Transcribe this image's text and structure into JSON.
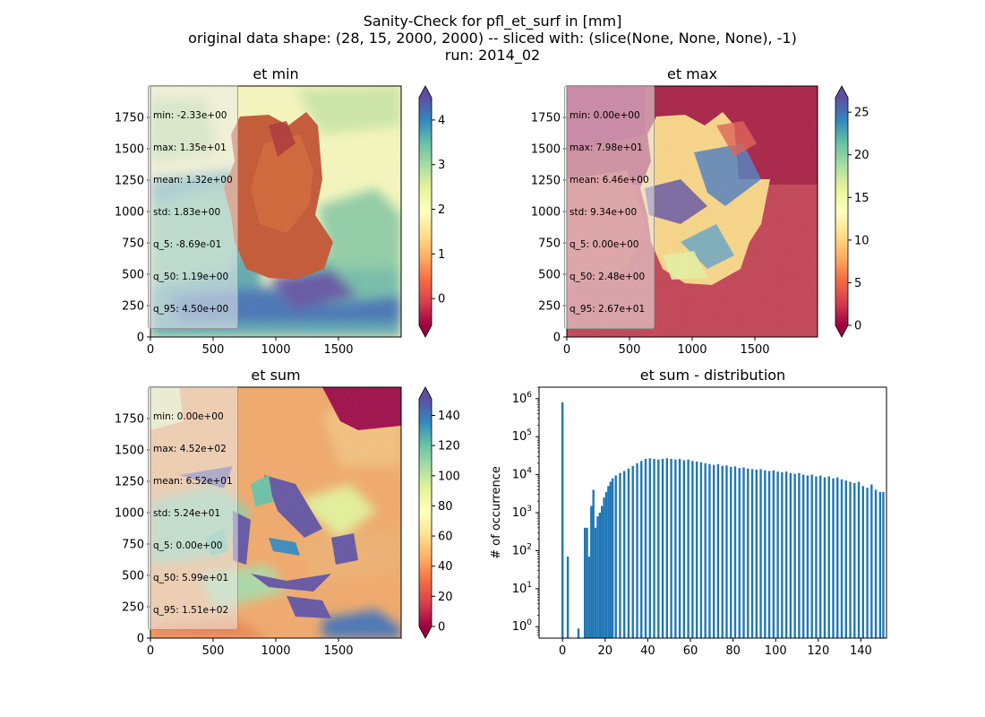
{
  "figure": {
    "title_lines": [
      "Sanity-Check for pfl_et_surf in [mm]",
      "original data shape: (28, 15, 2000, 2000) -- sliced with: (slice(None, None, None), -1)",
      "run: 2014_02"
    ]
  },
  "chart_data": [
    {
      "type": "heatmap",
      "title": "et min",
      "colormap": "Spectral",
      "colorbar": {
        "ticks": [
          0,
          1,
          2,
          3,
          4
        ],
        "range": [
          -0.6,
          4.5
        ],
        "extend": "both"
      },
      "xticks": [
        0,
        500,
        1000,
        1500
      ],
      "yticks": [
        0,
        250,
        500,
        750,
        1000,
        1250,
        1500,
        1750
      ],
      "xlim": [
        0,
        2000
      ],
      "ylim": [
        0,
        2000
      ],
      "stats": [
        "min: -2.33e+00",
        "max: 1.35e+01",
        "mean: 1.32e+00",
        "std: 1.83e+00",
        "q_5: -8.69e-01",
        "q_50: 1.19e+00",
        "q_95: 4.50e+00"
      ]
    },
    {
      "type": "heatmap",
      "title": "et max",
      "colormap": "Spectral",
      "colorbar": {
        "ticks": [
          0,
          5,
          10,
          15,
          20,
          25
        ],
        "range": [
          0,
          26.7
        ],
        "extend": "both"
      },
      "xticks": [
        0,
        500,
        1000,
        1500
      ],
      "yticks": [
        0,
        250,
        500,
        750,
        1000,
        1250,
        1500,
        1750
      ],
      "xlim": [
        0,
        2000
      ],
      "ylim": [
        0,
        2000
      ],
      "stats": [
        "min: 0.00e+00",
        "max: 7.98e+01",
        "mean: 6.46e+00",
        "std: 9.34e+00",
        "q_5: 0.00e+00",
        "q_50: 2.48e+00",
        "q_95: 2.67e+01"
      ]
    },
    {
      "type": "heatmap",
      "title": "et sum",
      "colormap": "Spectral",
      "colorbar": {
        "ticks": [
          0,
          20,
          40,
          60,
          80,
          100,
          120,
          140
        ],
        "range": [
          0,
          151
        ],
        "extend": "both"
      },
      "xticks": [
        0,
        500,
        1000,
        1500
      ],
      "yticks": [
        0,
        250,
        500,
        750,
        1000,
        1250,
        1500,
        1750
      ],
      "xlim": [
        0,
        2000
      ],
      "ylim": [
        0,
        2000
      ],
      "stats": [
        "min: 0.00e+00",
        "max: 4.52e+02",
        "mean: 6.52e+01",
        "std: 5.24e+01",
        "q_5: 0.00e+00",
        "q_50: 5.99e+01",
        "q_95: 1.51e+02"
      ]
    },
    {
      "type": "bar",
      "title": "et sum - distribution",
      "ylabel": "# of occurrence",
      "yscale": "log",
      "ylim": [
        0.5,
        2000000
      ],
      "xlim": [
        -11,
        152
      ],
      "xticks": [
        0,
        20,
        40,
        60,
        80,
        100,
        120,
        140
      ],
      "yticks": [
        1,
        10,
        100,
        1000,
        10000,
        100000,
        1000000
      ],
      "color": "#1f77b4",
      "bins": [
        [
          0,
          800000
        ],
        [
          2.5,
          70
        ],
        [
          7.5,
          0.9
        ],
        [
          10.5,
          400
        ],
        [
          11.5,
          400
        ],
        [
          12.5,
          70
        ],
        [
          13.5,
          1500
        ],
        [
          14.5,
          4000
        ],
        [
          15.5,
          400
        ],
        [
          16.5,
          800
        ],
        [
          17.5,
          1000
        ],
        [
          18.5,
          1500
        ],
        [
          19.5,
          2500
        ],
        [
          20.5,
          3500
        ],
        [
          21.5,
          5000
        ],
        [
          22.5,
          6500
        ],
        [
          23.5,
          8000
        ],
        [
          25,
          9500
        ],
        [
          27,
          11000
        ],
        [
          29,
          12500
        ],
        [
          31,
          14500
        ],
        [
          33,
          17000
        ],
        [
          35,
          20000
        ],
        [
          37,
          23000
        ],
        [
          39,
          26000
        ],
        [
          41,
          27000
        ],
        [
          43,
          26000
        ],
        [
          45,
          25000
        ],
        [
          47,
          26000
        ],
        [
          49,
          27000
        ],
        [
          51,
          26000
        ],
        [
          53,
          25000
        ],
        [
          55,
          26000
        ],
        [
          57,
          24000
        ],
        [
          59,
          25000
        ],
        [
          61,
          23000
        ],
        [
          63,
          22000
        ],
        [
          65,
          21000
        ],
        [
          67,
          20000
        ],
        [
          69,
          19000
        ],
        [
          71,
          18000
        ],
        [
          73,
          19000
        ],
        [
          75,
          17000
        ],
        [
          77,
          17500
        ],
        [
          79,
          16000
        ],
        [
          81,
          16500
        ],
        [
          83,
          15000
        ],
        [
          85,
          15500
        ],
        [
          87,
          14500
        ],
        [
          89,
          14000
        ],
        [
          91,
          13500
        ],
        [
          93,
          14000
        ],
        [
          95,
          13000
        ],
        [
          97,
          12500
        ],
        [
          99,
          13000
        ],
        [
          101,
          12000
        ],
        [
          103,
          11500
        ],
        [
          105,
          12000
        ],
        [
          107,
          11000
        ],
        [
          109,
          10500
        ],
        [
          111,
          11000
        ],
        [
          113,
          10000
        ],
        [
          115,
          9500
        ],
        [
          117,
          10000
        ],
        [
          119,
          9000
        ],
        [
          121,
          9500
        ],
        [
          123,
          8500
        ],
        [
          125,
          9000
        ],
        [
          127,
          8000
        ],
        [
          129,
          8500
        ],
        [
          131,
          7500
        ],
        [
          133,
          7000
        ],
        [
          135,
          6500
        ],
        [
          137,
          6000
        ],
        [
          139,
          6500
        ],
        [
          141,
          5000
        ],
        [
          143,
          4500
        ],
        [
          145,
          5500
        ],
        [
          147,
          4000
        ],
        [
          149,
          3500
        ],
        [
          150.5,
          3500
        ]
      ]
    }
  ]
}
